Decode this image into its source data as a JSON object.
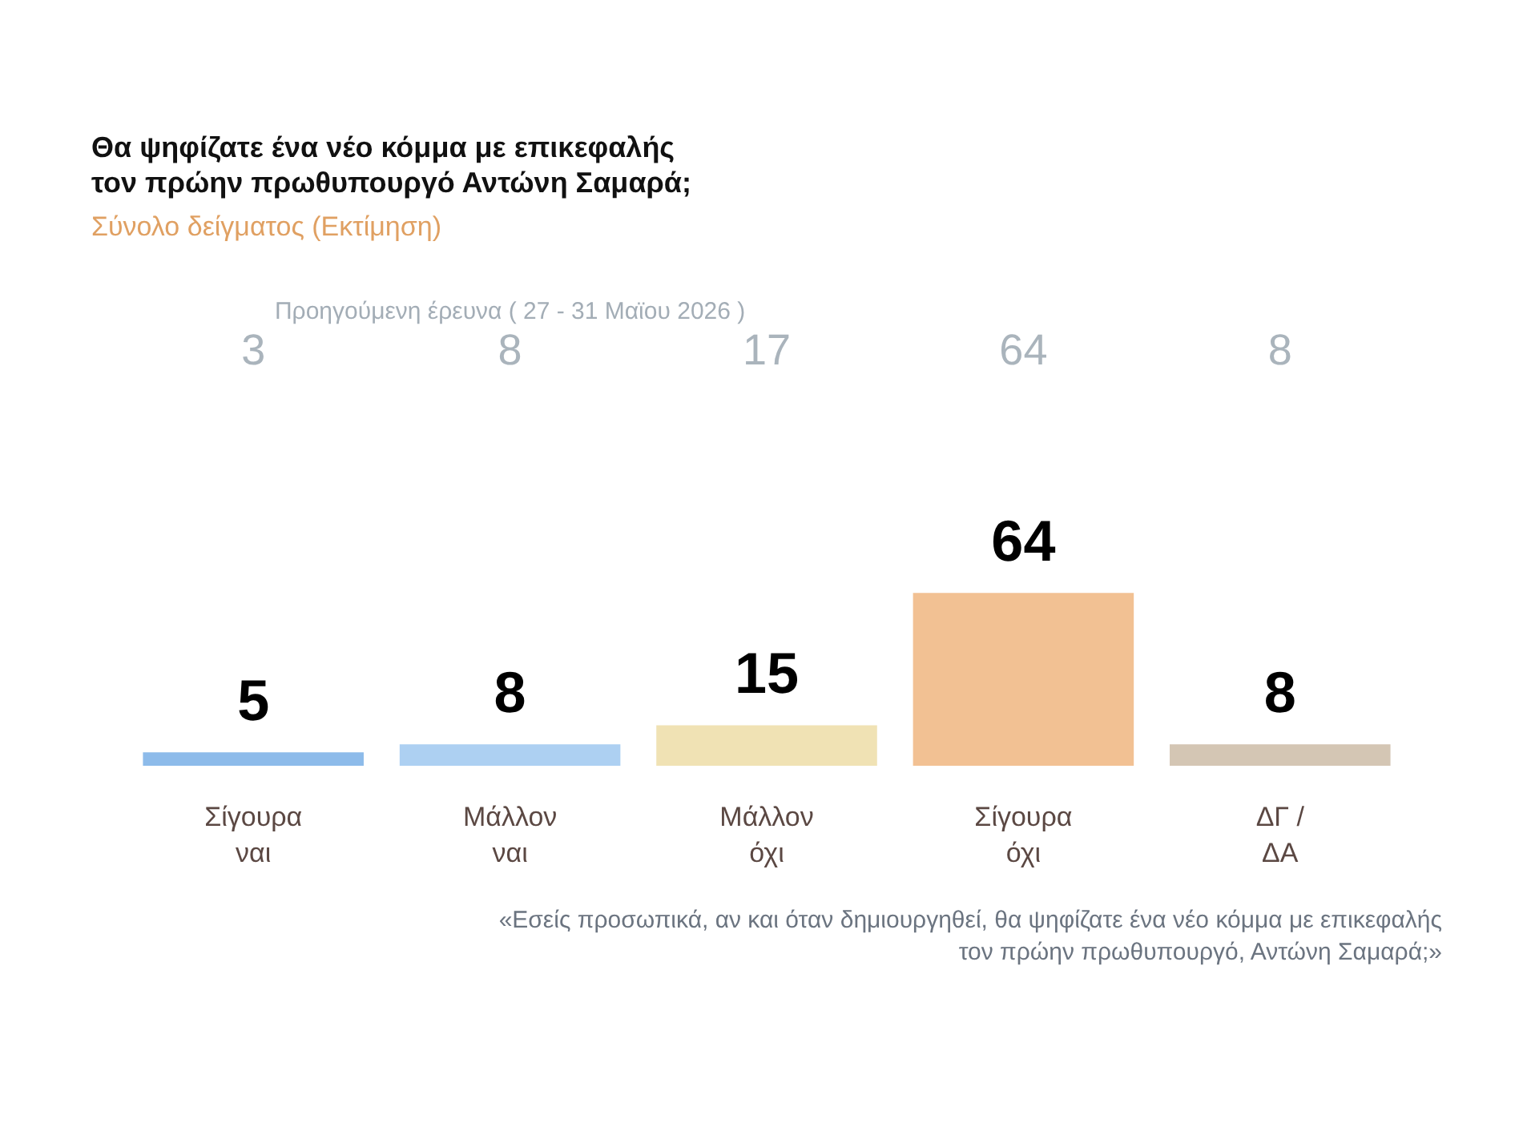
{
  "chart_data": {
    "type": "bar",
    "title": "Θα ψηφίζατε ένα νέο κόμμα με επικεφαλής τον πρώην πρωθυπουργό Αντώνη Σαμαρά;",
    "subtitle": "Σύνολο δείγματος (Εκτίμηση)",
    "categories": [
      "Σίγουρα ναι",
      "Μάλλον ναι",
      "Μάλλον όχι",
      "Σίγουρα όχι",
      "ΔΓ / ΔΑ"
    ],
    "values": [
      5,
      8,
      15,
      64,
      8
    ],
    "colors": [
      "#8dbbea",
      "#add0f2",
      "#f0e2b4",
      "#f2c193",
      "#d4c6b4"
    ],
    "tick_labels": "x",
    "data_labels": true,
    "grid": false,
    "legend": false,
    "annotations": [
      "Προηγούμενη έρευνα ( 27 - 31 Μαϊου 2026 )",
      "3",
      "8",
      "17",
      "64",
      "8",
      "«Εσείς προσωπικά, αν και όταν δημιουργηθεί, θα ψηφίζατε ένα νέο κόμμα με επικεφαλής τον πρώην πρωθυπουργό, Αντώνη Σαμαρά;»"
    ]
  }
}
